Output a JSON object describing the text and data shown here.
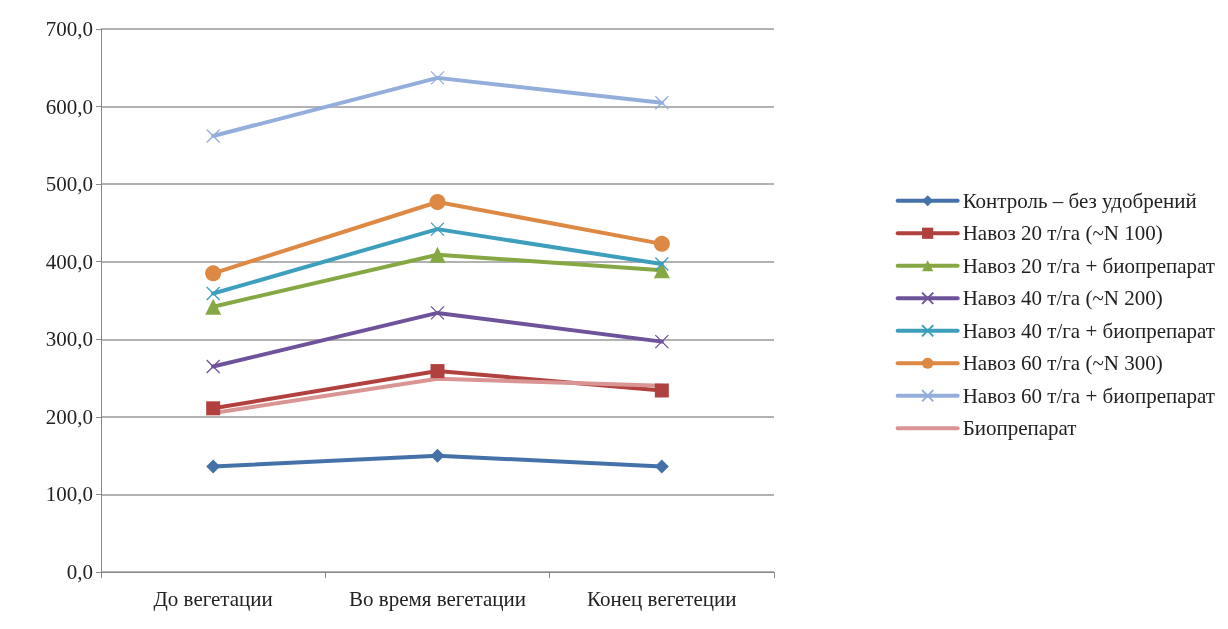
{
  "chart_data": {
    "type": "line",
    "categories": [
      "До вегетации",
      "Во время вегетации",
      "Конец вегетеции"
    ],
    "ylim": [
      0,
      700
    ],
    "yticks": [
      {
        "value": 0,
        "label": "0,0"
      },
      {
        "value": 100,
        "label": "100,0"
      },
      {
        "value": 200,
        "label": "200,0"
      },
      {
        "value": 300,
        "label": "300,0"
      },
      {
        "value": 400,
        "label": "400,0"
      },
      {
        "value": 500,
        "label": "500,0"
      },
      {
        "value": 600,
        "label": "600,0"
      },
      {
        "value": 700,
        "label": "700,0"
      }
    ],
    "grid": "y",
    "legend": "right",
    "series": [
      {
        "name": "Контроль – без удобрений",
        "color": "#4472a8",
        "marker": "diamond",
        "values": [
          136,
          150,
          136
        ]
      },
      {
        "name": "Навоз 20 т/га (~N 100)",
        "color": "#b0413e",
        "marker": "square",
        "values": [
          211,
          259,
          234
        ]
      },
      {
        "name": "Навоз 20 т/га + биопрепарат",
        "color": "#86a844",
        "marker": "triangle",
        "values": [
          342,
          409,
          389
        ]
      },
      {
        "name": "Навоз 40 т/га (~N 200)",
        "color": "#6f539a",
        "marker": "cross",
        "values": [
          265,
          334,
          297
        ]
      },
      {
        "name": "Навоз 40 т/га + биопрепарат",
        "color": "#3d9fbc",
        "marker": "cross",
        "values": [
          359,
          442,
          397
        ]
      },
      {
        "name": "Навоз 60 т/га (~N 300)",
        "color": "#dd8843",
        "marker": "circle",
        "values": [
          385,
          477,
          423
        ]
      },
      {
        "name": "Навоз 60 т/га + биопрепарат",
        "color": "#93aedb",
        "marker": "cross",
        "values": [
          562,
          637,
          605
        ]
      },
      {
        "name": "Биопрепарат",
        "color": "#d99593",
        "marker": "none",
        "values": [
          205,
          249,
          240
        ]
      }
    ]
  }
}
